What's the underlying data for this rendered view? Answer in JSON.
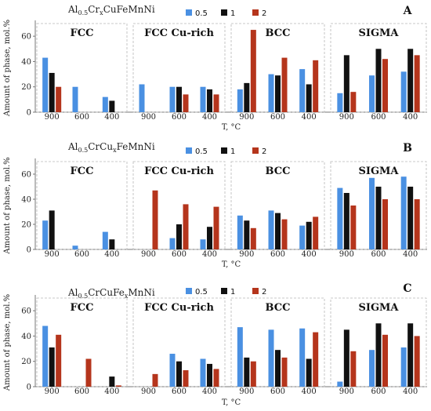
{
  "colors": {
    "s0": "#4a90e2",
    "s1": "#111111",
    "s2": "#b5351c",
    "box": "#b8b8b8",
    "axis": "#777777"
  },
  "panels_text": [
    {
      "letter": "A",
      "title_main": "Al",
      "title_sub1": "0.5",
      "title_mid": "Cr",
      "title_sub2": "x",
      "title_end": "CuFeMnNi"
    },
    {
      "letter": "B",
      "title_main": "Al",
      "title_sub1": "0.5",
      "title_mid": "CrCu",
      "title_sub2": "x",
      "title_end": "FeMnNi"
    },
    {
      "letter": "C",
      "title_main": "Al",
      "title_sub1": "0.5",
      "title_mid": "CrCuFe",
      "title_sub2": "x",
      "title_end": "MnNi"
    }
  ],
  "chart_data": [
    {
      "type": "bar",
      "panel": "A",
      "title": "Al0.5CrxCuFeMnNi",
      "xlabel": "T, °C",
      "ylabel": "Amount of phase, mol.%",
      "ylim": [
        0,
        70
      ],
      "yticks": [
        0,
        20,
        40,
        60
      ],
      "groups": [
        "FCC",
        "FCC Cu-rich",
        "BCC",
        "SIGMA"
      ],
      "categories": [
        "900",
        "600",
        "400"
      ],
      "series": [
        {
          "name": "0.5",
          "values": [
            [
              43,
              20,
              12
            ],
            [
              22,
              20,
              20
            ],
            [
              18,
              30,
              34
            ],
            [
              15,
              29,
              32
            ]
          ]
        },
        {
          "name": "1",
          "values": [
            [
              31,
              0,
              9
            ],
            [
              0,
              20,
              18
            ],
            [
              23,
              29,
              22
            ],
            [
              45,
              50,
              50
            ]
          ]
        },
        {
          "name": "2",
          "values": [
            [
              20,
              0,
              0
            ],
            [
              0,
              14,
              14
            ],
            [
              65,
              43,
              41
            ],
            [
              16,
              42,
              45
            ]
          ]
        }
      ]
    },
    {
      "type": "bar",
      "panel": "B",
      "title": "Al0.5CrCuxFeMnNi",
      "xlabel": "T, °C",
      "ylabel": "Amount of phase, mol.%",
      "ylim": [
        0,
        70
      ],
      "yticks": [
        0,
        20,
        40,
        60
      ],
      "groups": [
        "FCC",
        "FCC Cu-rich",
        "BCC",
        "SIGMA"
      ],
      "categories": [
        "900",
        "600",
        "400"
      ],
      "series": [
        {
          "name": "0.5",
          "values": [
            [
              23,
              3,
              14
            ],
            [
              0,
              9,
              8
            ],
            [
              27,
              31,
              19
            ],
            [
              49,
              57,
              58
            ]
          ]
        },
        {
          "name": "1",
          "values": [
            [
              31,
              0,
              8
            ],
            [
              0,
              20,
              18
            ],
            [
              23,
              29,
              22
            ],
            [
              45,
              50,
              50
            ]
          ]
        },
        {
          "name": "2",
          "values": [
            [
              0,
              0,
              0
            ],
            [
              47,
              36,
              34
            ],
            [
              17,
              24,
              26
            ],
            [
              35,
              40,
              40
            ]
          ]
        }
      ]
    },
    {
      "type": "bar",
      "panel": "C",
      "title": "Al0.5CrCuFexMnNi",
      "xlabel": "T, °C",
      "ylabel": "Amount of phase, mol.%",
      "ylim": [
        0,
        70
      ],
      "yticks": [
        0,
        20,
        40,
        60
      ],
      "groups": [
        "FCC",
        "FCC Cu-rich",
        "BCC",
        "SIGMA"
      ],
      "categories": [
        "900",
        "600",
        "400"
      ],
      "series": [
        {
          "name": "0.5",
          "values": [
            [
              48,
              0,
              0
            ],
            [
              0,
              26,
              22
            ],
            [
              47,
              45,
              46
            ],
            [
              4,
              29,
              31
            ]
          ]
        },
        {
          "name": "1",
          "values": [
            [
              31,
              0,
              8
            ],
            [
              0,
              20,
              18
            ],
            [
              23,
              29,
              22
            ],
            [
              45,
              50,
              50
            ]
          ]
        },
        {
          "name": "2",
          "values": [
            [
              41,
              22,
              1
            ],
            [
              10,
              13,
              14
            ],
            [
              20,
              23,
              43
            ],
            [
              28,
              41,
              40
            ]
          ]
        }
      ]
    }
  ]
}
